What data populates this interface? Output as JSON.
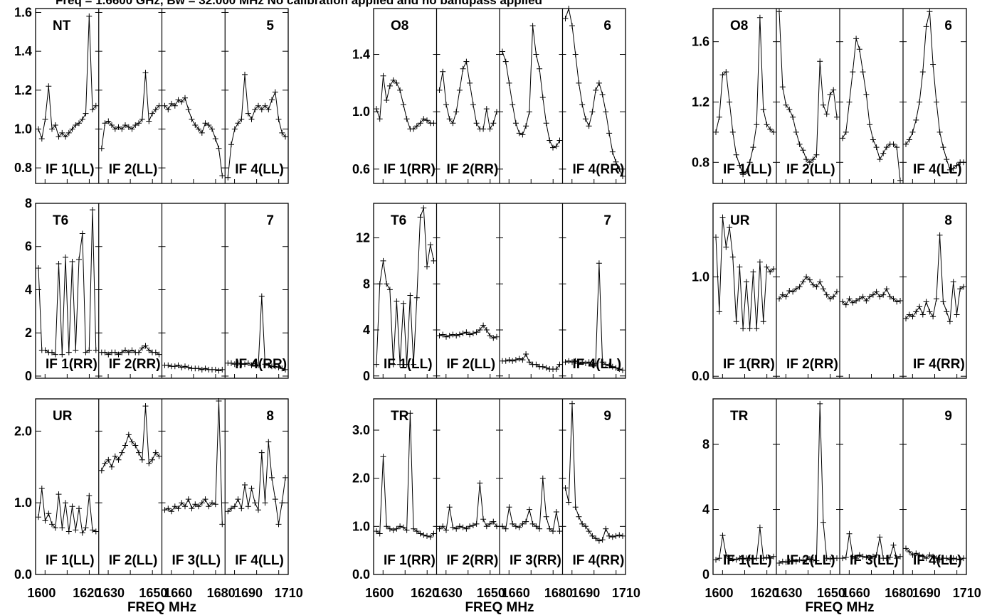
{
  "title": "Freq = 1.6600 GHz, Bw = 32.000 MHz  No calibration applied and no bandpass applied",
  "xlabel": "FREQ MHz",
  "x_tick_labels": [
    "1600",
    "1620",
    "1630",
    "1650",
    "1660",
    "1680",
    "1690",
    "1710"
  ],
  "chart_data": [
    {
      "type": "line",
      "baseline": "NT-5",
      "left_label": "NT",
      "right_label": "5",
      "ylim": [
        0.72,
        1.62
      ],
      "yticks": [
        "0.8",
        "1.0",
        "1.2",
        "1.4",
        "1.6"
      ],
      "sub_labels": [
        "IF 1(LL)",
        "IF 2(LL)",
        "",
        "IF 4(LL)"
      ],
      "series": [
        {
          "values": [
            1.0,
            0.95,
            1.05,
            1.22,
            1.0,
            1.02,
            0.96,
            0.98,
            0.96,
            0.98,
            1.0,
            1.02,
            1.03,
            1.05,
            1.08,
            1.58,
            1.1,
            1.12
          ]
        },
        {
          "values": [
            0.9,
            1.03,
            1.04,
            1.02,
            1.0,
            1.01,
            1.0,
            1.02,
            1.01,
            1.0,
            1.02,
            1.03,
            1.05,
            1.29,
            1.04,
            1.08,
            1.1,
            1.12
          ]
        },
        {
          "values": [
            1.12,
            1.1,
            1.13,
            1.12,
            1.15,
            1.14,
            1.16,
            1.1,
            1.05,
            1.02,
            1.0,
            0.98,
            1.03,
            1.02,
            1.0,
            0.95,
            0.9,
            0.76
          ]
        },
        {
          "values": [
            0.75,
            0.92,
            1.0,
            1.03,
            1.05,
            1.28,
            1.08,
            1.05,
            1.1,
            1.12,
            1.1,
            1.12,
            1.1,
            1.15,
            1.19,
            1.05,
            0.98,
            0.96
          ]
        }
      ]
    },
    {
      "type": "line",
      "baseline": "O8-6",
      "left_label": "O8",
      "right_label": "6",
      "ylim": [
        0.5,
        1.72
      ],
      "yticks": [
        "0.6",
        "1.0",
        "1.4"
      ],
      "sub_labels": [
        "IF 1(RR)",
        "IF 2(RR)",
        "",
        "IF 4(RR)"
      ],
      "series": [
        {
          "values": [
            1.02,
            0.95,
            1.25,
            1.08,
            1.18,
            1.22,
            1.2,
            1.15,
            1.05,
            0.95,
            0.88,
            0.88,
            0.9,
            0.92,
            0.95,
            0.94,
            0.92,
            0.92
          ]
        },
        {
          "values": [
            1.15,
            1.28,
            1.05,
            0.95,
            0.92,
            1.0,
            1.15,
            1.3,
            1.35,
            1.2,
            1.05,
            0.92,
            0.88,
            0.88,
            1.02,
            0.88,
            0.92,
            1.0
          ]
        },
        {
          "values": [
            1.42,
            1.35,
            1.2,
            1.05,
            0.92,
            0.85,
            0.84,
            0.9,
            1.0,
            1.6,
            1.4,
            1.3,
            1.1,
            0.92,
            0.8,
            0.75,
            0.76,
            0.8
          ]
        },
        {
          "values": [
            1.65,
            1.72,
            1.6,
            1.4,
            1.2,
            1.05,
            0.95,
            0.9,
            1.0,
            1.15,
            1.2,
            1.12,
            1.0,
            0.85,
            0.72,
            0.65,
            0.6,
            0.55
          ]
        }
      ]
    },
    {
      "type": "line",
      "baseline": "O8-6",
      "left_label": "O8",
      "right_label": "6",
      "ylim": [
        0.66,
        1.82
      ],
      "yticks": [
        "0.8",
        "1.2",
        "1.6"
      ],
      "sub_labels": [
        "IF 1(LL)",
        "IF 2(LL)",
        "",
        "IF 4(LL)"
      ],
      "series": [
        {
          "values": [
            1.0,
            1.1,
            1.38,
            1.4,
            1.2,
            1.0,
            0.85,
            0.78,
            0.72,
            0.74,
            0.8,
            0.9,
            1.05,
            1.76,
            1.15,
            1.05,
            1.02,
            1.0
          ]
        },
        {
          "values": [
            1.8,
            1.3,
            1.18,
            1.15,
            1.1,
            1.0,
            0.92,
            0.88,
            0.82,
            0.8,
            0.82,
            0.85,
            1.47,
            1.18,
            1.12,
            1.25,
            1.28,
            1.1
          ]
        },
        {
          "values": [
            0.96,
            1.0,
            1.2,
            1.4,
            1.62,
            1.55,
            1.4,
            1.25,
            1.05,
            0.95,
            0.9,
            0.82,
            0.86,
            0.9,
            0.92,
            0.92,
            0.9,
            0.68
          ]
        },
        {
          "values": [
            0.92,
            0.95,
            1.0,
            1.08,
            1.2,
            1.4,
            1.7,
            1.8,
            1.45,
            1.2,
            1.0,
            0.9,
            0.82,
            0.75,
            0.76,
            0.78,
            0.8,
            0.8
          ]
        }
      ]
    },
    {
      "type": "line",
      "baseline": "T6-7",
      "left_label": "T6",
      "right_label": "7",
      "ylim": [
        -0.1,
        8.0
      ],
      "yticks": [
        "0",
        "2",
        "4",
        "6",
        "8"
      ],
      "sub_labels": [
        "IF 1(RR)",
        "IF 2(RR)",
        "",
        "IF 4(RR)"
      ],
      "series": [
        {
          "values": [
            5.0,
            1.2,
            1.2,
            1.1,
            1.1,
            1.0,
            5.2,
            1.0,
            5.5,
            1.1,
            5.3,
            1.2,
            5.4,
            6.6,
            1.1,
            1.2,
            7.7,
            1.2
          ]
        },
        {
          "values": [
            1.1,
            1.1,
            1.0,
            1.1,
            1.1,
            1.0,
            1.1,
            1.2,
            1.1,
            1.2,
            1.1,
            1.1,
            1.3,
            1.4,
            1.2,
            1.1,
            1.1,
            1.0
          ]
        },
        {
          "values": [
            0.5,
            0.5,
            0.45,
            0.45,
            0.5,
            0.4,
            0.45,
            0.4,
            0.35,
            0.35,
            0.35,
            0.3,
            0.35,
            0.3,
            0.3,
            0.3,
            0.25,
            0.3
          ]
        },
        {
          "values": [
            0.6,
            0.6,
            0.55,
            0.6,
            0.55,
            0.55,
            0.6,
            0.5,
            0.6,
            0.5,
            3.7,
            0.55,
            0.5,
            0.45,
            0.45,
            0.4,
            0.35,
            0.3
          ]
        }
      ]
    },
    {
      "type": "line",
      "baseline": "T6-7",
      "left_label": "T6",
      "right_label": "7",
      "ylim": [
        -0.2,
        15.0
      ],
      "yticks": [
        "0",
        "4",
        "8",
        "12"
      ],
      "sub_labels": [
        "IF 1(LL)",
        "IF 2(LL)",
        "",
        "IF 4(LL)"
      ],
      "series": [
        {
          "values": [
            1.0,
            8.0,
            10.0,
            8.0,
            7.5,
            1.0,
            6.5,
            1.0,
            6.3,
            1.0,
            7.0,
            1.0,
            6.8,
            13.8,
            14.6,
            9.5,
            11.4,
            10.0
          ]
        },
        {
          "values": [
            3.5,
            3.6,
            3.4,
            3.5,
            3.6,
            3.5,
            3.6,
            3.7,
            3.8,
            3.6,
            3.7,
            3.8,
            4.0,
            4.4,
            4.0,
            3.5,
            3.3,
            3.4
          ]
        },
        {
          "values": [
            1.3,
            1.3,
            1.4,
            1.3,
            1.4,
            1.5,
            1.4,
            1.9,
            1.2,
            1.0,
            1.0,
            0.8,
            0.8,
            0.7,
            0.6,
            0.6,
            0.6,
            1.0
          ]
        },
        {
          "values": [
            1.2,
            1.3,
            1.2,
            1.3,
            1.1,
            1.2,
            1.1,
            1.2,
            1.0,
            1.1,
            9.8,
            1.2,
            1.0,
            0.9,
            0.8,
            0.7,
            0.6,
            0.5
          ]
        }
      ]
    },
    {
      "type": "line",
      "baseline": "UR-8",
      "left_label": "UR",
      "right_label": "8",
      "ylim": [
        -0.02,
        1.74
      ],
      "yticks": [
        "0.0",
        "1.0"
      ],
      "sub_labels": [
        "IF 1(RR)",
        "IF 2(RR)",
        "",
        "IF 4(RR)"
      ],
      "series": [
        {
          "values": [
            1.4,
            0.65,
            1.6,
            1.3,
            1.5,
            1.2,
            0.55,
            1.1,
            0.48,
            0.95,
            0.48,
            1.05,
            0.48,
            1.15,
            0.55,
            1.1,
            1.05,
            1.08
          ]
        },
        {
          "values": [
            0.78,
            0.82,
            0.8,
            0.86,
            0.85,
            0.88,
            0.9,
            0.95,
            1.0,
            0.97,
            0.92,
            0.9,
            0.95,
            0.88,
            0.82,
            0.78,
            0.8,
            0.85
          ]
        },
        {
          "values": [
            0.75,
            0.72,
            0.78,
            0.74,
            0.76,
            0.78,
            0.8,
            0.76,
            0.8,
            0.82,
            0.85,
            0.8,
            0.82,
            0.88,
            0.8,
            0.78,
            0.75,
            0.76
          ]
        },
        {
          "values": [
            0.58,
            0.62,
            0.6,
            0.65,
            0.7,
            0.62,
            0.75,
            0.65,
            0.6,
            0.78,
            1.42,
            0.75,
            0.65,
            0.55,
            0.95,
            0.62,
            0.88,
            0.9
          ]
        }
      ]
    },
    {
      "type": "line",
      "baseline": "UR-8",
      "left_label": "UR",
      "right_label": "8",
      "ylim": [
        0.0,
        2.45
      ],
      "yticks": [
        "0.0",
        "1.0",
        "2.0"
      ],
      "sub_labels": [
        "IF 1(LL)",
        "IF 2(LL)",
        "IF 3(LL)",
        "IF 4(LL)"
      ],
      "series": [
        {
          "values": [
            0.8,
            1.2,
            0.75,
            0.85,
            0.7,
            0.65,
            1.12,
            0.65,
            1.0,
            0.6,
            0.95,
            0.62,
            0.92,
            0.58,
            0.65,
            1.1,
            0.62,
            0.6
          ]
        },
        {
          "values": [
            1.45,
            1.55,
            1.6,
            1.5,
            1.65,
            1.6,
            1.7,
            1.8,
            1.95,
            1.85,
            1.8,
            1.7,
            1.6,
            2.35,
            1.55,
            1.6,
            1.7,
            1.65
          ]
        },
        {
          "values": [
            0.9,
            0.92,
            0.88,
            0.95,
            0.92,
            1.0,
            0.95,
            1.05,
            0.92,
            0.98,
            0.95,
            1.0,
            1.05,
            0.95,
            1.0,
            0.98,
            2.42,
            0.7
          ]
        },
        {
          "values": [
            0.88,
            0.92,
            0.95,
            1.05,
            0.92,
            1.25,
            0.95,
            1.2,
            1.0,
            0.9,
            1.7,
            1.0,
            1.85,
            1.35,
            1.05,
            0.7,
            1.0,
            1.35
          ]
        }
      ]
    },
    {
      "type": "line",
      "baseline": "TR-9",
      "left_label": "TR",
      "right_label": "9",
      "ylim": [
        0.0,
        3.65
      ],
      "yticks": [
        "0.0",
        "1.0",
        "2.0",
        "3.0"
      ],
      "sub_labels": [
        "IF 1(RR)",
        "IF 2(RR)",
        "IF 3(RR)",
        "IF 4(RR)"
      ],
      "series": [
        {
          "values": [
            0.9,
            0.85,
            2.45,
            1.0,
            0.95,
            0.92,
            0.95,
            1.0,
            0.98,
            0.92,
            3.35,
            0.95,
            0.9,
            0.85,
            0.82,
            0.8,
            0.78,
            0.85
          ]
        },
        {
          "values": [
            0.95,
            1.0,
            0.92,
            1.4,
            0.98,
            0.95,
            1.0,
            0.98,
            0.95,
            1.0,
            1.02,
            1.05,
            1.9,
            1.15,
            1.0,
            1.05,
            1.1,
            1.0
          ]
        },
        {
          "values": [
            1.0,
            0.95,
            1.4,
            1.05,
            1.0,
            0.98,
            1.05,
            1.1,
            1.35,
            1.05,
            1.0,
            0.95,
            2.0,
            1.2,
            0.95,
            0.9,
            1.3,
            0.9
          ]
        },
        {
          "values": [
            1.8,
            1.5,
            3.55,
            1.4,
            1.2,
            1.05,
            1.0,
            0.9,
            0.8,
            0.75,
            0.7,
            0.72,
            0.95,
            0.8,
            0.78,
            0.8,
            0.82,
            0.8
          ]
        }
      ]
    },
    {
      "type": "line",
      "baseline": "TR-9",
      "left_label": "TR",
      "right_label": "9",
      "ylim": [
        0.0,
        10.8
      ],
      "yticks": [
        "0",
        "4",
        "8"
      ],
      "sub_labels": [
        "IF 1(LL)",
        "IF 2(LL)",
        "IF 3(LL)",
        "IF 4(LL)"
      ],
      "series": [
        {
          "values": [
            0.9,
            1.0,
            2.4,
            1.2,
            1.0,
            0.95,
            0.9,
            1.0,
            0.95,
            1.0,
            1.0,
            0.95,
            1.0,
            2.9,
            1.0,
            1.05,
            1.0,
            1.1
          ]
        },
        {
          "values": [
            0.7,
            0.8,
            0.75,
            0.8,
            0.85,
            0.8,
            0.9,
            0.85,
            0.9,
            0.95,
            0.9,
            0.85,
            10.5,
            3.2,
            1.0,
            0.95,
            1.0,
            1.0
          ]
        },
        {
          "values": [
            1.0,
            1.05,
            2.5,
            1.1,
            1.0,
            1.2,
            1.1,
            1.05,
            1.0,
            1.1,
            1.2,
            2.3,
            1.0,
            1.0,
            1.05,
            1.8,
            1.0,
            1.1
          ]
        },
        {
          "values": [
            1.6,
            1.4,
            1.2,
            1.3,
            1.2,
            1.1,
            1.0,
            1.2,
            1.1,
            1.0,
            0.9,
            1.0,
            1.0,
            0.9,
            1.0,
            0.95,
            0.9,
            1.0
          ]
        }
      ]
    }
  ]
}
